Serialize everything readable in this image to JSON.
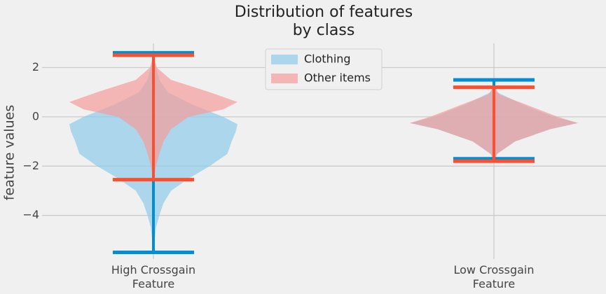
{
  "chart_data": {
    "type": "violin",
    "title": "Distribution of features\nby class",
    "y_label": "feature values",
    "categories": [
      "High Crossgain\nFeature",
      "Low Crossgain\nFeature"
    ],
    "ylim": [
      -5.77,
      2.98
    ],
    "yticks": [
      {
        "value": -4,
        "label": "−4"
      },
      {
        "value": -2,
        "label": "−2"
      },
      0,
      2
    ],
    "grid": true,
    "legend": "upper center",
    "series": [
      {
        "name": "Clothing",
        "color": "#008fd5",
        "body_color": "#8ecbea",
        "min": [
          -5.5,
          -1.7
        ],
        "max": [
          2.6,
          1.5
        ],
        "shape_y": [
          [
            2.6,
            2.0,
            1.5,
            1.0,
            0.5,
            0,
            -0.3,
            -0.6,
            -1,
            -1.5,
            -2,
            -2.5,
            -3,
            -3.5,
            -4,
            -4.5,
            -5.5
          ],
          [
            1.5,
            1.0,
            0.5,
            0,
            -0.25,
            -0.5,
            -1,
            -1.5,
            -1.7
          ]
        ],
        "density": [
          [
            0,
            0.03,
            0.07,
            0.17,
            0.46,
            0.83,
            1,
            0.98,
            0.93,
            0.88,
            0.67,
            0.42,
            0.21,
            0.12,
            0.07,
            0.03,
            0
          ],
          [
            0,
            0.04,
            0.34,
            0.71,
            1,
            0.67,
            0.25,
            0.04,
            0
          ]
        ]
      },
      {
        "name": "Other items",
        "color": "#fc4f30",
        "body_color": "#f49d9a",
        "min": [
          -2.55,
          -1.8
        ],
        "max": [
          2.5,
          1.2
        ],
        "shape_y": [
          [
            2.5,
            2.0,
            1.5,
            1.0,
            0.6,
            0.3,
            0,
            -0.5,
            -1,
            -1.5,
            -2,
            -2.55
          ],
          [
            1.2,
            0.9,
            0.5,
            0,
            -0.25,
            -0.5,
            -1,
            -1.5,
            -1.8
          ]
        ],
        "density": [
          [
            0,
            0.04,
            0.21,
            0.67,
            1,
            0.83,
            0.42,
            0.21,
            0.12,
            0.07,
            0.03,
            0
          ],
          [
            0,
            0.07,
            0.38,
            0.76,
            1,
            0.67,
            0.25,
            0.04,
            0
          ]
        ]
      }
    ]
  }
}
